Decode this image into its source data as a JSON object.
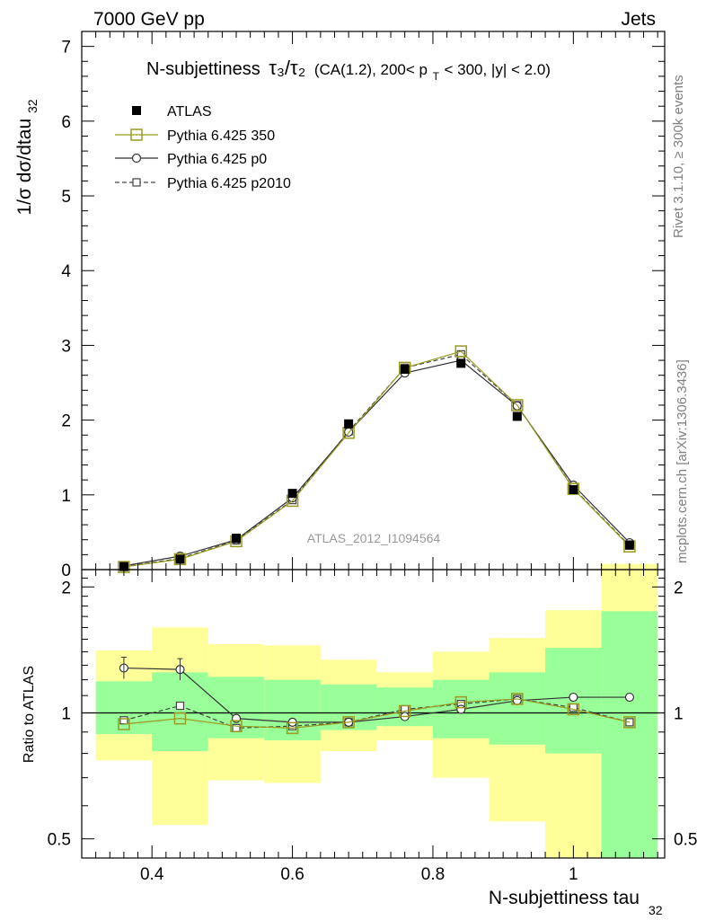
{
  "header": {
    "left": "7000 GeV pp",
    "right": "Jets",
    "side_top": "Rivet 3.1.10, ≥ 300k events",
    "side_bottom": "mcplots.cern.ch [arXiv:1306.3436]",
    "watermark": "ATLAS_2012_I1094564"
  },
  "chart_data": {
    "type": "line",
    "title": "N-subjettiness τ₃/τ₂ (CA(1.2), 200< p_T < 300, |y| < 2.0)",
    "title_main": "N-subjettiness",
    "title_ratio": "τ₃/τ₂",
    "title_cond": "(CA(1.2), 200< p",
    "title_cond_sub": "T",
    "title_cond_tail": " < 300, |y| < 2.0)",
    "xlabel": "N-subjettiness tau",
    "xlabel_sub": "32",
    "ylabel": "1/σ dσ/dtau",
    "ylabel_sub": "32",
    "ratio_ylabel": "Ratio to ATLAS",
    "xlim": [
      0.3,
      1.13
    ],
    "ylim": [
      0,
      7.2
    ],
    "ratio_ylim": [
      0.45,
      2.2
    ],
    "x_ticks": [
      0.4,
      0.6,
      0.8,
      1.0
    ],
    "x_tick_labels": [
      "0.4",
      "0.6",
      "0.8",
      "1"
    ],
    "y_ticks": [
      0,
      1,
      2,
      3,
      4,
      5,
      6,
      7
    ],
    "ratio_y_ticks": [
      0.5,
      1,
      2
    ],
    "ratio_y_tick_labels": [
      "0.5",
      "1",
      "2"
    ],
    "bin_edges": [
      0.32,
      0.4,
      0.48,
      0.56,
      0.64,
      0.72,
      0.8,
      0.88,
      0.96,
      1.04,
      1.12
    ],
    "x": [
      0.36,
      0.44,
      0.52,
      0.6,
      0.68,
      0.76,
      0.84,
      0.92,
      1.0,
      1.08
    ],
    "legend_position": "top-left",
    "series": [
      {
        "name": "ATLAS",
        "marker": "filled-square",
        "color": "#000000",
        "values": [
          0.04,
          0.14,
          0.42,
          1.02,
          1.95,
          2.68,
          2.76,
          2.05,
          1.07,
          0.33
        ]
      },
      {
        "name": "Pythia 6.425 350",
        "marker": "open-square",
        "color": "#9a9a20",
        "dash": false,
        "values": [
          0.035,
          0.14,
          0.38,
          0.92,
          1.83,
          2.7,
          2.92,
          2.2,
          1.08,
          0.31
        ],
        "ratio": [
          0.94,
          0.97,
          0.93,
          0.92,
          0.95,
          1.01,
          1.06,
          1.08,
          1.02,
          0.95
        ]
      },
      {
        "name": "Pythia 6.425 p0",
        "marker": "open-circle",
        "color": "#333333",
        "dash": false,
        "values": [
          0.05,
          0.18,
          0.4,
          0.96,
          1.84,
          2.63,
          2.8,
          2.19,
          1.13,
          0.36
        ],
        "ratio": [
          1.28,
          1.27,
          0.97,
          0.95,
          0.95,
          0.98,
          1.02,
          1.07,
          1.09,
          1.09
        ]
      },
      {
        "name": "Pythia 6.425 p2010",
        "marker": "open-square-small",
        "color": "#444444",
        "dash": true,
        "values": [
          0.04,
          0.15,
          0.39,
          0.93,
          1.85,
          2.7,
          2.88,
          2.2,
          1.09,
          0.32
        ],
        "ratio": [
          0.96,
          1.04,
          0.92,
          0.93,
          0.95,
          1.02,
          1.05,
          1.08,
          1.03,
          0.95
        ]
      }
    ],
    "bands": {
      "green_lo": [
        0.89,
        0.81,
        0.87,
        0.86,
        0.91,
        0.93,
        0.87,
        0.84,
        0.8,
        0.37
      ],
      "green_hi": [
        1.19,
        1.25,
        1.22,
        1.2,
        1.17,
        1.15,
        1.2,
        1.25,
        1.43,
        1.75
      ],
      "yellow_lo": [
        0.77,
        0.54,
        0.69,
        0.68,
        0.81,
        0.86,
        0.7,
        0.55,
        0.35,
        0.35
      ],
      "yellow_hi": [
        1.41,
        1.6,
        1.46,
        1.45,
        1.34,
        1.25,
        1.4,
        1.51,
        1.76,
        2.27
      ]
    },
    "colors": {
      "green_band": "#99ff99",
      "yellow_band": "#ffff99"
    }
  }
}
